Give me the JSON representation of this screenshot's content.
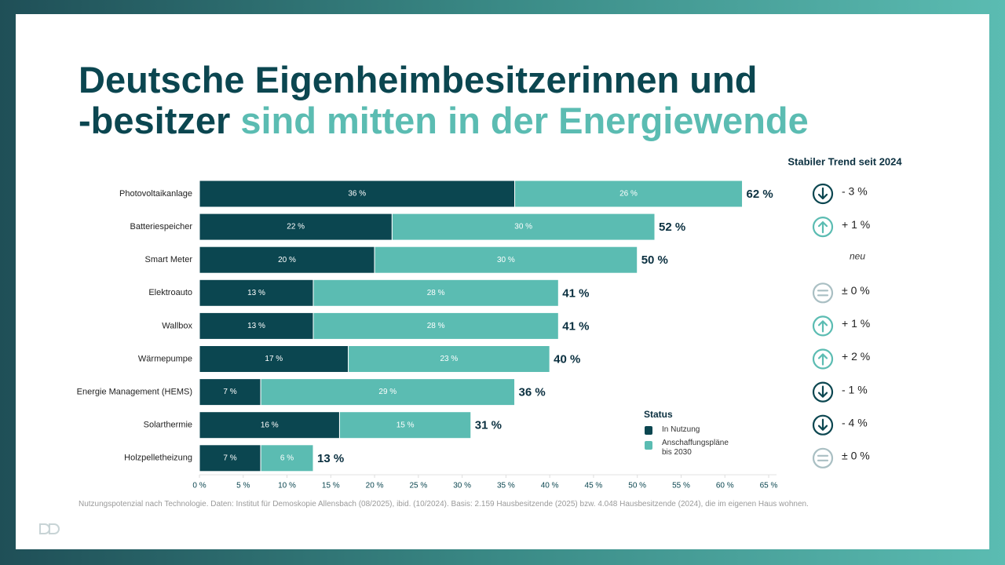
{
  "header": {
    "title_line1": "Deutsche Eigenheimbesitzerinnen und",
    "title_line2_dark": "-besitzer",
    "title_line2_highlight": "sind mitten in der Energiewende"
  },
  "chart_data": {
    "type": "stacked-barh",
    "categories": [
      "Photovoltaikanlage",
      "Batteriespeicher",
      "Smart Meter",
      "Elektroauto",
      "Wallbox",
      "Wärmepumpe",
      "Energie Management (HEMS)",
      "Solarthermie",
      "Holzpelletheizung"
    ],
    "series": [
      {
        "name": "In Nutzung",
        "color": "#0b4650",
        "values": [
          36,
          22,
          20,
          13,
          13,
          17,
          7,
          16,
          7
        ],
        "value_labels": [
          "36 %",
          "22 %",
          "20 %",
          "13 %",
          "13 %",
          "17 %",
          "7 %",
          "16 %",
          "7 %"
        ]
      },
      {
        "name": "Anschaffungspläne bis 2030",
        "color": "#5bbcb2",
        "values": [
          26,
          30,
          30,
          28,
          28,
          23,
          29,
          15,
          6
        ],
        "value_labels": [
          "26 %",
          "30 %",
          "30 %",
          "28 %",
          "28 %",
          "23 %",
          "29 %",
          "15 %",
          "6 %"
        ]
      }
    ],
    "total_labels": [
      "62 %",
      "52 %",
      "50 %",
      "41 %",
      "41 %",
      "40 %",
      "36 %",
      "31 %",
      "13 %"
    ],
    "xlim": [
      0,
      65
    ],
    "xticks": [
      {
        "value": 0,
        "label": "0 %"
      },
      {
        "value": 5,
        "label": "5 %"
      },
      {
        "value": 10,
        "label": "10 %"
      },
      {
        "value": 15,
        "label": "15 %"
      },
      {
        "value": 20,
        "label": "20 %"
      },
      {
        "value": 25,
        "label": "25 %"
      },
      {
        "value": 30,
        "label": "30 %"
      },
      {
        "value": 35,
        "label": "35 %"
      },
      {
        "value": 40,
        "label": "40 %"
      },
      {
        "value": 45,
        "label": "45 %"
      },
      {
        "value": 50,
        "label": "50 %"
      },
      {
        "value": 55,
        "label": "55 %"
      },
      {
        "value": 60,
        "label": "60 %"
      },
      {
        "value": 65,
        "label": "65 %"
      }
    ],
    "legend_title": "Status",
    "legend_position": "lower-right",
    "grid": false
  },
  "trend": {
    "title": "Stabiler Trend seit 2024",
    "items": [
      {
        "direction": "down",
        "label": "- 3 %"
      },
      {
        "direction": "up",
        "label": "+ 1 %"
      },
      {
        "direction": "none",
        "label": "neu"
      },
      {
        "direction": "equal",
        "label": "± 0 %"
      },
      {
        "direction": "up",
        "label": "+ 1 %"
      },
      {
        "direction": "up",
        "label": "+ 2 %"
      },
      {
        "direction": "down",
        "label": "- 1 %"
      },
      {
        "direction": "down",
        "label": "- 4 %"
      },
      {
        "direction": "equal",
        "label": "± 0 %"
      }
    ]
  },
  "footnote": "Nutzungspotenzial nach Technologie. Daten: Institut für Demoskopie Allensbach (08/2025), ibid. (10/2024). Basis: 2.159 Hausbesitzende (2025) bzw. 4.048 Hausbesitzende (2024), die im eigenen Haus wohnen."
}
